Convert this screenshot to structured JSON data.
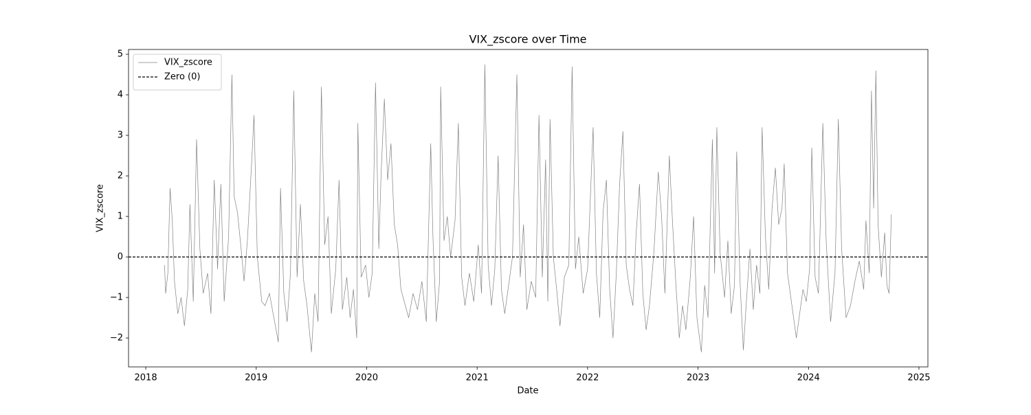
{
  "chart_data": {
    "type": "line",
    "title": "VIX_zscore over Time",
    "xlabel": "Date",
    "ylabel": "VIX_zscore",
    "xlim": [
      2017.844,
      2025.081
    ],
    "ylim": [
      -2.712,
      5.119
    ],
    "xticks": [
      2018,
      2019,
      2020,
      2021,
      2022,
      2023,
      2024,
      2025
    ],
    "yticks": [
      {
        "value": -2,
        "label": "−2"
      },
      {
        "value": -1,
        "label": "−1"
      },
      0,
      1,
      2,
      3,
      4,
      5
    ],
    "legend": "upper left",
    "x": [
      2018.17,
      2018.18,
      2018.2,
      2018.22,
      2018.24,
      2018.26,
      2018.29,
      2018.32,
      2018.35,
      2018.38,
      2018.4,
      2018.43,
      2018.46,
      2018.49,
      2018.52,
      2018.56,
      2018.59,
      2018.62,
      2018.65,
      2018.68,
      2018.71,
      2018.75,
      2018.78,
      2018.8,
      2018.83,
      2018.86,
      2018.89,
      2018.92,
      2018.96,
      2018.98,
      2019.01,
      2019.05,
      2019.08,
      2019.12,
      2019.16,
      2019.2,
      2019.22,
      2019.25,
      2019.28,
      2019.31,
      2019.34,
      2019.37,
      2019.4,
      2019.43,
      2019.46,
      2019.5,
      2019.53,
      2019.56,
      2019.59,
      2019.62,
      2019.65,
      2019.68,
      2019.72,
      2019.75,
      2019.78,
      2019.82,
      2019.85,
      2019.88,
      2019.91,
      2019.92,
      2019.95,
      2019.99,
      2020.02,
      2020.05,
      2020.08,
      2020.11,
      2020.13,
      2020.16,
      2020.19,
      2020.22,
      2020.25,
      2020.28,
      2020.31,
      2020.34,
      2020.38,
      2020.42,
      2020.46,
      2020.5,
      2020.54,
      2020.58,
      2020.6,
      2020.63,
      2020.66,
      2020.67,
      2020.7,
      2020.73,
      2020.76,
      2020.8,
      2020.83,
      2020.86,
      2020.89,
      2020.93,
      2020.97,
      2021.01,
      2021.04,
      2021.07,
      2021.1,
      2021.13,
      2021.16,
      2021.19,
      2021.22,
      2021.25,
      2021.29,
      2021.32,
      2021.36,
      2021.39,
      2021.42,
      2021.45,
      2021.49,
      2021.53,
      2021.56,
      2021.59,
      2021.62,
      2021.64,
      2021.66,
      2021.69,
      2021.72,
      2021.75,
      2021.79,
      2021.83,
      2021.86,
      2021.89,
      2021.92,
      2021.96,
      2022.0,
      2022.05,
      2022.08,
      2022.11,
      2022.14,
      2022.17,
      2022.2,
      2022.23,
      2022.26,
      2022.29,
      2022.32,
      2022.35,
      2022.38,
      2022.41,
      2022.44,
      2022.47,
      2022.5,
      2022.53,
      2022.56,
      2022.6,
      2022.64,
      2022.67,
      2022.7,
      2022.74,
      2022.77,
      2022.8,
      2022.83,
      2022.86,
      2022.89,
      2022.93,
      2022.96,
      2022.99,
      2023.03,
      2023.06,
      2023.09,
      2023.13,
      2023.15,
      2023.17,
      2023.2,
      2023.24,
      2023.27,
      2023.3,
      2023.33,
      2023.35,
      2023.38,
      2023.41,
      2023.44,
      2023.47,
      2023.5,
      2023.53,
      2023.56,
      2023.58,
      2023.61,
      2023.64,
      2023.67,
      2023.7,
      2023.73,
      2023.76,
      2023.78,
      2023.81,
      2023.85,
      2023.89,
      2023.92,
      2023.95,
      2023.98,
      2024.01,
      2024.03,
      2024.06,
      2024.09,
      2024.13,
      2024.16,
      2024.2,
      2024.24,
      2024.27,
      2024.3,
      2024.34,
      2024.38,
      2024.42,
      2024.46,
      2024.5,
      2024.52,
      2024.55,
      2024.57,
      2024.59,
      2024.61,
      2024.63,
      2024.66,
      2024.69,
      2024.71,
      2024.73,
      2024.75
    ],
    "series": [
      {
        "name": "VIX_zscore",
        "color": "#808080",
        "values": [
          -0.2,
          -0.9,
          -0.4,
          1.7,
          0.9,
          -0.6,
          -1.4,
          -1.0,
          -1.7,
          -0.8,
          1.3,
          -1.1,
          2.9,
          0.2,
          -0.9,
          -0.4,
          -1.4,
          1.9,
          -0.3,
          1.8,
          -1.1,
          0.5,
          4.5,
          1.5,
          1.1,
          0.3,
          -0.6,
          0.4,
          2.4,
          3.5,
          0.0,
          -1.1,
          -1.2,
          -0.9,
          -1.5,
          -2.1,
          1.7,
          -0.9,
          -1.6,
          -0.4,
          4.1,
          -0.5,
          1.3,
          -0.6,
          -1.2,
          -2.35,
          -0.9,
          -1.6,
          4.2,
          0.3,
          1.0,
          -1.4,
          -0.3,
          1.9,
          -1.3,
          -0.5,
          -1.5,
          -0.8,
          -2.0,
          3.3,
          -0.5,
          -0.2,
          -1.0,
          -0.4,
          4.3,
          0.2,
          2.0,
          3.9,
          1.9,
          2.8,
          0.8,
          0.3,
          -0.8,
          -1.1,
          -1.5,
          -0.9,
          -1.3,
          -0.6,
          -1.6,
          2.8,
          0.5,
          -1.6,
          -0.6,
          4.2,
          0.4,
          1.0,
          0.0,
          0.9,
          3.3,
          -0.5,
          -1.2,
          -0.4,
          -1.1,
          0.3,
          -0.9,
          4.75,
          -0.2,
          -1.2,
          -0.3,
          2.5,
          -0.8,
          -1.4,
          -0.6,
          0.0,
          4.5,
          -0.5,
          0.8,
          -1.3,
          -0.6,
          -1.0,
          3.5,
          -0.5,
          2.4,
          -1.1,
          3.4,
          0.0,
          -0.8,
          -1.7,
          -0.5,
          -0.2,
          4.7,
          -0.3,
          0.5,
          -0.9,
          -0.3,
          3.2,
          -0.4,
          -1.5,
          1.1,
          1.9,
          -0.8,
          -2.0,
          -0.4,
          1.8,
          3.1,
          -0.2,
          -0.8,
          -1.2,
          0.6,
          1.8,
          -0.9,
          -1.8,
          -1.2,
          0.1,
          2.1,
          1.0,
          -0.9,
          2.5,
          0.8,
          -0.7,
          -2.0,
          -1.2,
          -1.8,
          -0.5,
          1.0,
          -1.5,
          -2.35,
          -0.7,
          -1.5,
          2.9,
          -0.4,
          3.2,
          0.1,
          -1.0,
          0.4,
          -1.4,
          -0.7,
          2.6,
          -0.6,
          -2.3,
          -1.0,
          0.2,
          -1.3,
          -0.2,
          -0.9,
          3.2,
          0.5,
          -0.8,
          1.2,
          2.2,
          0.8,
          1.2,
          2.3,
          -0.4,
          -1.2,
          -2.0,
          -1.4,
          -0.8,
          -1.1,
          -0.3,
          2.7,
          -0.5,
          -0.9,
          3.3,
          0.4,
          -1.6,
          -0.4,
          3.4,
          0.2,
          -1.5,
          -1.2,
          -0.6,
          -0.1,
          -0.8,
          0.9,
          -0.4,
          4.1,
          1.2,
          4.6,
          0.8,
          -0.5,
          0.6,
          -0.7,
          -0.9,
          1.05
        ]
      }
    ],
    "hlines": [
      {
        "name": "Zero (0)",
        "value": 0,
        "color": "#000000"
      }
    ]
  }
}
